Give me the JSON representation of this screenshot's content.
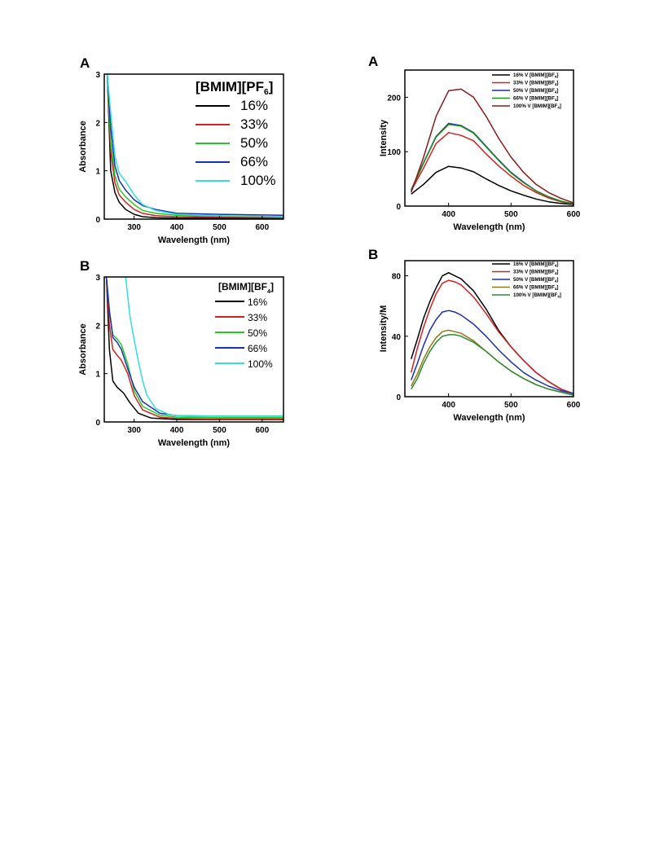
{
  "chart_data": [
    {
      "id": "abs-pf6",
      "type": "line",
      "panel_letter": "A",
      "xlabel": "Wavelength (nm)",
      "ylabel": "Absorbance",
      "xlim": [
        230,
        650
      ],
      "ylim": [
        0,
        3
      ],
      "xticks": [
        300,
        400,
        500,
        600
      ],
      "yticks": [
        0,
        1,
        2,
        3
      ],
      "legend_position": "top-right",
      "legend_title": {
        "main": "[BMIM][PF",
        "sub": "6",
        "close": "]"
      },
      "series": [
        {
          "name": "16%",
          "color": "#000000",
          "x": [
            237,
            245,
            255,
            265,
            280,
            300,
            320,
            350,
            400,
            500,
            650
          ],
          "y": [
            3.0,
            1.0,
            0.55,
            0.35,
            0.2,
            0.1,
            0.05,
            0.03,
            0.02,
            0.02,
            0.02
          ]
        },
        {
          "name": "33%",
          "color": "#d42020",
          "x": [
            237,
            245,
            255,
            265,
            280,
            300,
            320,
            350,
            400,
            500,
            650
          ],
          "y": [
            3.0,
            1.4,
            0.75,
            0.5,
            0.35,
            0.2,
            0.12,
            0.07,
            0.05,
            0.04,
            0.03
          ]
        },
        {
          "name": "50%",
          "color": "#22cc22",
          "x": [
            237,
            245,
            255,
            265,
            280,
            300,
            320,
            350,
            400,
            500,
            650
          ],
          "y": [
            3.0,
            1.6,
            0.9,
            0.62,
            0.46,
            0.3,
            0.18,
            0.12,
            0.08,
            0.06,
            0.05
          ]
        },
        {
          "name": "66%",
          "color": "#1a2fb4",
          "x": [
            237,
            245,
            255,
            265,
            280,
            300,
            320,
            350,
            400,
            500,
            650
          ],
          "y": [
            3.0,
            1.9,
            1.1,
            0.8,
            0.6,
            0.4,
            0.28,
            0.2,
            0.12,
            0.1,
            0.08
          ]
        },
        {
          "name": "100%",
          "color": "#33dddd",
          "x": [
            237,
            245,
            255,
            265,
            280,
            300,
            320,
            350,
            400,
            500,
            650
          ],
          "y": [
            3.0,
            2.2,
            1.3,
            0.95,
            0.78,
            0.5,
            0.3,
            0.18,
            0.1,
            0.07,
            0.05
          ]
        }
      ]
    },
    {
      "id": "abs-bf4",
      "type": "line",
      "panel_letter": "B",
      "xlabel": "Wavelength (nm)",
      "ylabel": "Absorbance",
      "xlim": [
        230,
        650
      ],
      "ylim": [
        0,
        3
      ],
      "xticks": [
        300,
        400,
        500,
        600
      ],
      "yticks": [
        0,
        1,
        2,
        3
      ],
      "legend_position": "top-right",
      "legend_title": {
        "main": "[BMIM][BF",
        "sub": "4",
        "close": "]"
      },
      "series": [
        {
          "name": "16%",
          "color": "#000000",
          "x": [
            235,
            242,
            250,
            260,
            275,
            290,
            310,
            340,
            400,
            500,
            650
          ],
          "y": [
            3.0,
            1.5,
            0.85,
            0.72,
            0.6,
            0.4,
            0.18,
            0.08,
            0.05,
            0.05,
            0.05
          ]
        },
        {
          "name": "33%",
          "color": "#d42020",
          "x": [
            235,
            242,
            250,
            260,
            270,
            285,
            300,
            320,
            360,
            400,
            500,
            650
          ],
          "y": [
            3.0,
            2.0,
            1.5,
            1.38,
            1.28,
            1.0,
            0.55,
            0.25,
            0.1,
            0.07,
            0.06,
            0.06
          ]
        },
        {
          "name": "50%",
          "color": "#22cc22",
          "x": [
            235,
            242,
            250,
            260,
            270,
            285,
            300,
            320,
            360,
            400,
            500,
            650
          ],
          "y": [
            3.0,
            2.3,
            1.8,
            1.72,
            1.6,
            1.2,
            0.65,
            0.32,
            0.14,
            0.1,
            0.09,
            0.09
          ]
        },
        {
          "name": "66%",
          "color": "#1a2fb4",
          "x": [
            235,
            242,
            250,
            260,
            270,
            285,
            300,
            320,
            360,
            400,
            500,
            650
          ],
          "y": [
            3.0,
            2.3,
            1.75,
            1.65,
            1.5,
            1.1,
            0.72,
            0.42,
            0.18,
            0.13,
            0.12,
            0.12
          ]
        },
        {
          "name": "100%",
          "color": "#33dddd",
          "x": [
            280,
            285,
            290,
            300,
            310,
            320,
            330,
            350,
            380,
            400,
            500,
            650
          ],
          "y": [
            3.0,
            2.6,
            2.2,
            1.7,
            1.25,
            0.85,
            0.55,
            0.28,
            0.16,
            0.13,
            0.12,
            0.12
          ]
        }
      ]
    },
    {
      "id": "fl-a",
      "type": "line",
      "panel_letter": "A",
      "xlabel": "Wavelength (nm)",
      "ylabel": "Intensity",
      "xlim": [
        330,
        600
      ],
      "ylim": [
        0,
        250
      ],
      "xticks": [
        400,
        500,
        600
      ],
      "yticks": [
        0,
        100,
        200
      ],
      "legend_position": "top-right",
      "series": [
        {
          "label": "16% V [BMIM][BF",
          "sub": "4",
          "close": "]",
          "color": "#000000",
          "x": [
            340,
            360,
            380,
            400,
            420,
            440,
            460,
            480,
            500,
            520,
            540,
            560,
            580,
            600
          ],
          "y": [
            22,
            40,
            62,
            73,
            70,
            63,
            50,
            38,
            28,
            20,
            13,
            8,
            5,
            3
          ]
        },
        {
          "label": "33% V [BMIM][BF",
          "sub": "4",
          "close": "]",
          "color": "#d42020",
          "x": [
            340,
            360,
            380,
            400,
            420,
            440,
            460,
            480,
            500,
            520,
            540,
            560,
            580,
            600
          ],
          "y": [
            28,
            70,
            115,
            135,
            130,
            120,
            96,
            74,
            55,
            38,
            25,
            15,
            8,
            4
          ]
        },
        {
          "label": "50% V [BMIM][BF",
          "sub": "4",
          "close": "]",
          "color": "#1a2fb4",
          "x": [
            340,
            360,
            380,
            400,
            420,
            440,
            460,
            480,
            500,
            520,
            540,
            560,
            580,
            600
          ],
          "y": [
            30,
            80,
            128,
            152,
            148,
            135,
            110,
            85,
            62,
            44,
            28,
            17,
            9,
            4
          ]
        },
        {
          "label": "66% V [BMIM][BF",
          "sub": "4",
          "close": "]",
          "color": "#1e8c1e",
          "x": [
            340,
            360,
            380,
            400,
            420,
            440,
            460,
            480,
            500,
            520,
            540,
            560,
            580,
            600
          ],
          "y": [
            29,
            79,
            127,
            150,
            147,
            134,
            109,
            84,
            61,
            43,
            28,
            17,
            9,
            4
          ]
        },
        {
          "label": "100% V [BMIM][BF",
          "sub": "4",
          "close": "]",
          "color": "#8b1a1a",
          "x": [
            340,
            360,
            380,
            400,
            420,
            440,
            460,
            480,
            500,
            520,
            540,
            560,
            580,
            600
          ],
          "y": [
            25,
            90,
            165,
            212,
            215,
            200,
            165,
            125,
            90,
            62,
            40,
            25,
            14,
            6
          ]
        }
      ]
    },
    {
      "id": "fl-b",
      "type": "line",
      "panel_letter": "B",
      "xlabel": "Wavelength (nm)",
      "ylabel": "Intensity/M",
      "xlim": [
        330,
        600
      ],
      "ylim": [
        0,
        90
      ],
      "xticks": [
        400,
        500,
        600
      ],
      "yticks": [
        0,
        40,
        80
      ],
      "legend_position": "top-right",
      "series": [
        {
          "label": "16% V [BMIM][BF",
          "sub": "4",
          "close": "]",
          "color": "#000000",
          "x": [
            340,
            350,
            360,
            370,
            380,
            390,
            400,
            410,
            420,
            440,
            460,
            480,
            500,
            520,
            540,
            560,
            580,
            600
          ],
          "y": [
            25,
            38,
            52,
            63,
            72,
            80,
            82,
            80,
            78,
            70,
            58,
            44,
            33,
            24,
            16,
            10,
            5,
            2
          ]
        },
        {
          "label": "33% V [BMIM][BF",
          "sub": "4",
          "close": "]",
          "color": "#d42020",
          "x": [
            340,
            350,
            360,
            370,
            380,
            390,
            400,
            410,
            420,
            440,
            460,
            480,
            500,
            520,
            540,
            560,
            580,
            600
          ],
          "y": [
            16,
            32,
            46,
            58,
            68,
            75,
            77,
            76,
            74,
            66,
            55,
            43,
            33,
            24,
            16,
            10,
            5,
            2
          ]
        },
        {
          "label": "50% V [BMIM][BF",
          "sub": "4",
          "close": "]",
          "color": "#1a2fb4",
          "x": [
            340,
            350,
            360,
            370,
            380,
            390,
            400,
            410,
            420,
            440,
            460,
            480,
            500,
            520,
            540,
            560,
            580,
            600
          ],
          "y": [
            11,
            22,
            34,
            44,
            51,
            56,
            57,
            56,
            54,
            48,
            40,
            31,
            23,
            16,
            11,
            7,
            4,
            2
          ]
        },
        {
          "label": "66% V [BMIM][BF",
          "sub": "4",
          "close": "]",
          "color": "#8b7a1a",
          "x": [
            340,
            350,
            360,
            370,
            380,
            390,
            400,
            410,
            420,
            440,
            460,
            480,
            500,
            520,
            540,
            560,
            580,
            600
          ],
          "y": [
            7,
            15,
            25,
            33,
            39,
            43,
            44,
            43,
            42,
            37,
            30,
            23,
            17,
            12,
            8,
            5,
            3,
            1
          ]
        },
        {
          "label": "100% V [BMIM][BF",
          "sub": "4",
          "close": "]",
          "color": "#2e8b2e",
          "x": [
            340,
            350,
            360,
            370,
            380,
            390,
            400,
            410,
            420,
            440,
            460,
            480,
            500,
            520,
            540,
            560,
            580,
            600
          ],
          "y": [
            5,
            12,
            22,
            30,
            36,
            40,
            41,
            41,
            40,
            36,
            30,
            23,
            17,
            12,
            8,
            5,
            3,
            1
          ]
        }
      ]
    }
  ]
}
